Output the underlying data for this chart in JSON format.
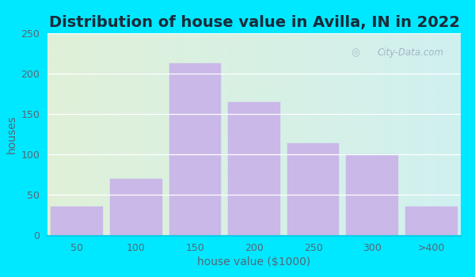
{
  "title": "Distribution of house value in Avilla, IN in 2022",
  "xlabel": "house value ($1000)",
  "ylabel": "houses",
  "categories": [
    "50",
    "100",
    "150",
    "200",
    "250",
    "300",
    ">400"
  ],
  "values": [
    36,
    70,
    213,
    165,
    114,
    100,
    36
  ],
  "bar_color": "#c9b8e8",
  "bar_edgecolor": "#c9b8e8",
  "ylim": [
    0,
    250
  ],
  "yticks": [
    0,
    50,
    100,
    150,
    200,
    250
  ],
  "title_fontsize": 14,
  "axis_label_fontsize": 10,
  "tick_fontsize": 9,
  "bg_outer": "#00e8ff",
  "bg_inner_left": "#e0f0d8",
  "bg_inner_right": "#d0f0f0",
  "watermark_text": "City-Data.com",
  "title_color": "#1a2a3a",
  "label_color": "#556677"
}
